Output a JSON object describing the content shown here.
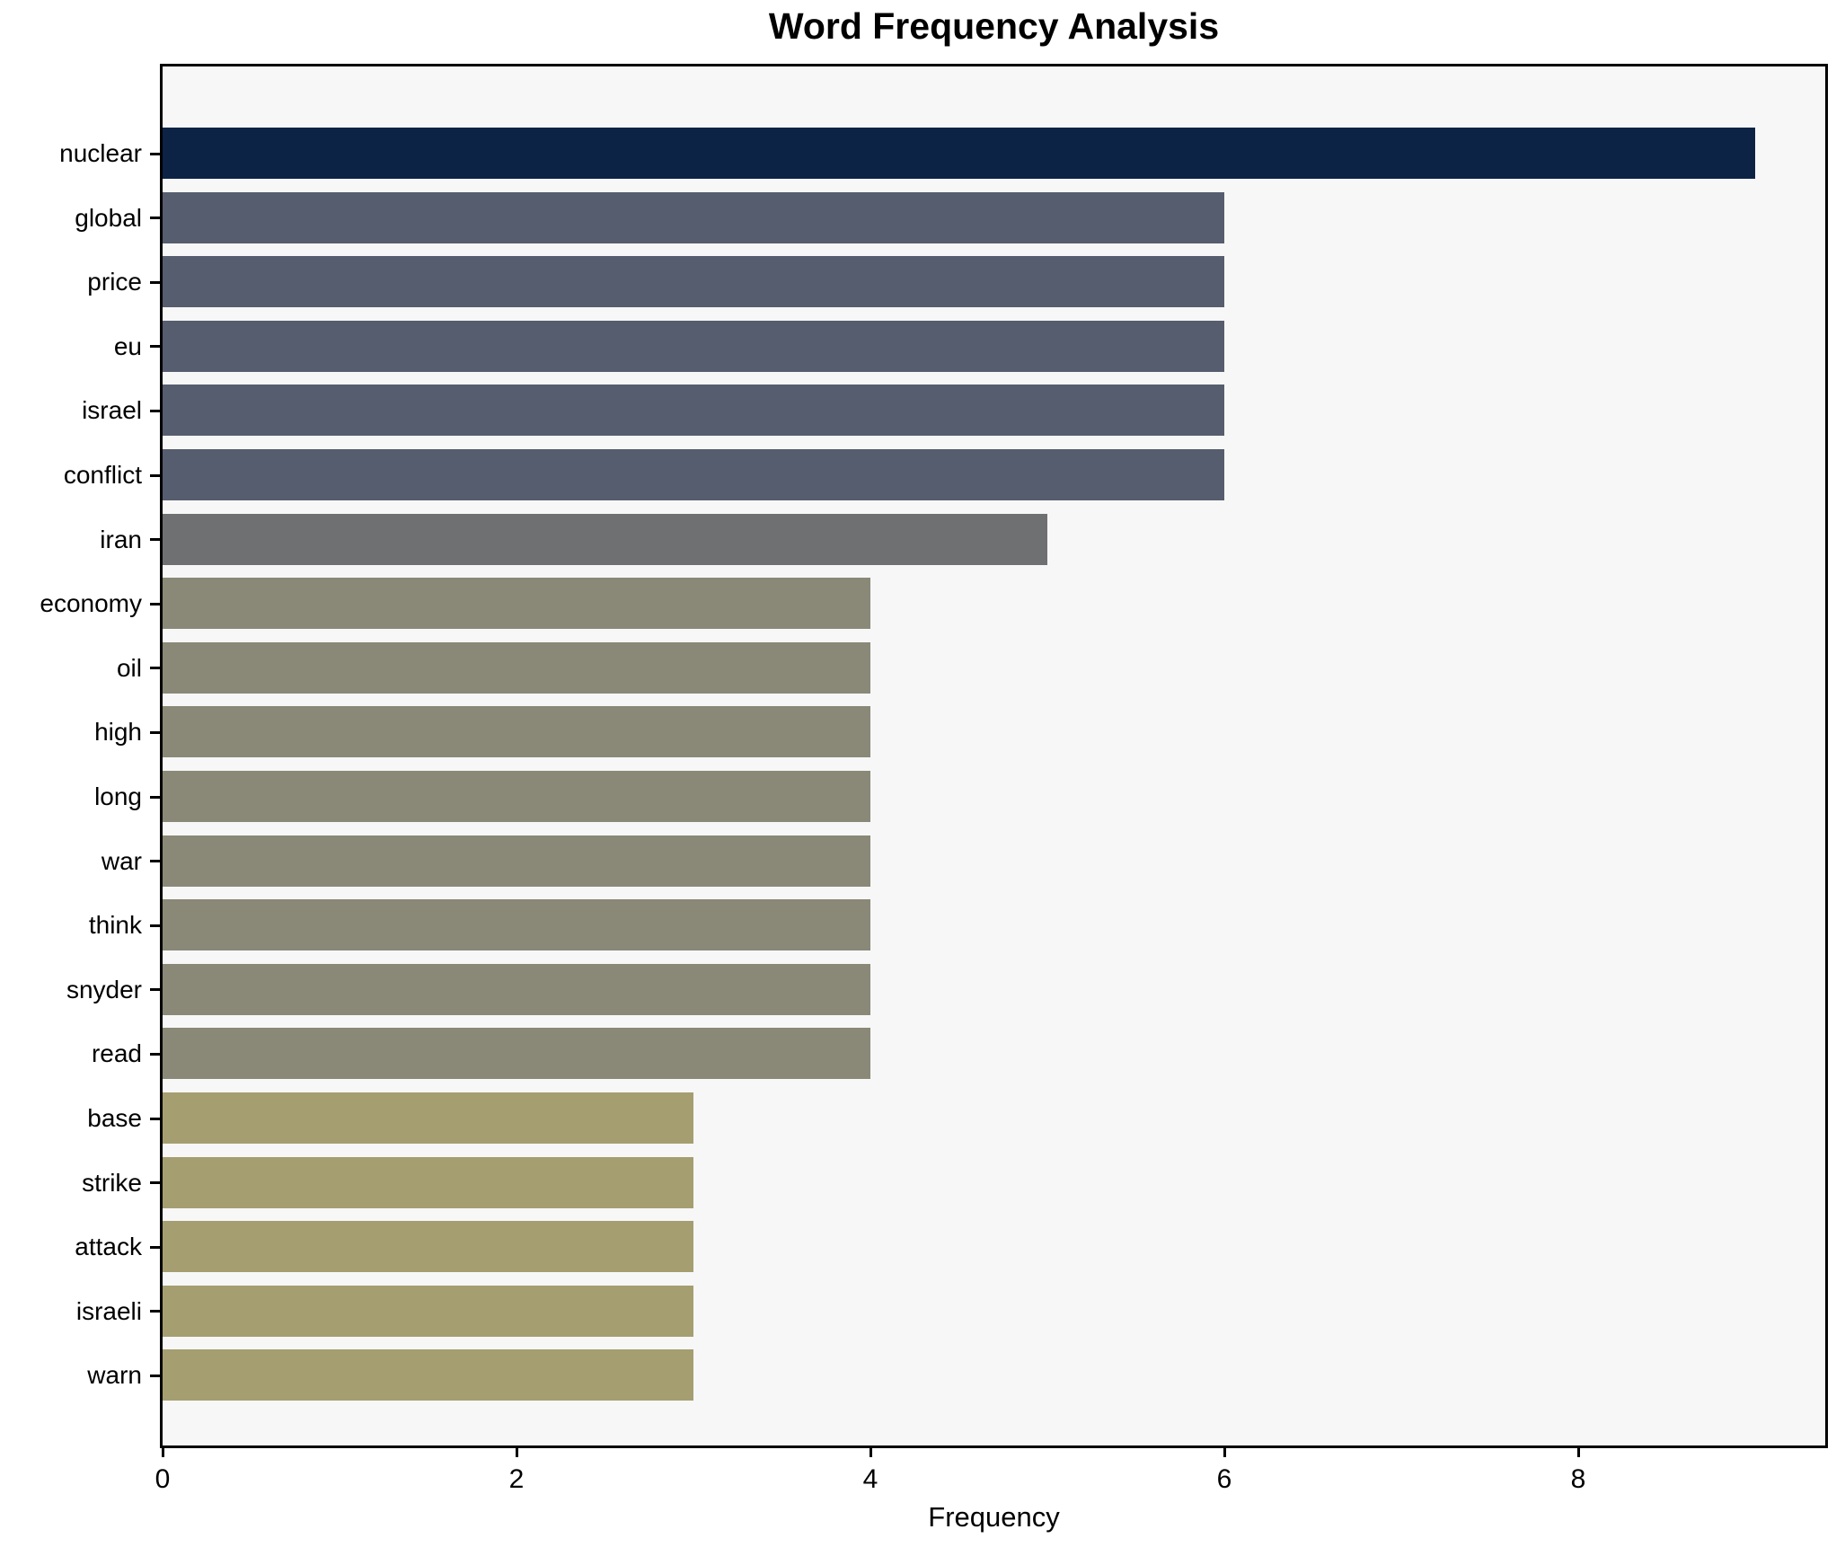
{
  "title": "Word Frequency Analysis",
  "x_axis": {
    "label": "Frequency",
    "ticks": [
      0,
      2,
      4,
      6,
      8
    ]
  },
  "chart_data": {
    "type": "bar",
    "orientation": "horizontal",
    "title": "Word Frequency Analysis",
    "xlabel": "Frequency",
    "ylabel": "",
    "xlim": [
      0,
      9.4
    ],
    "x_ticks": [
      0,
      2,
      4,
      6,
      8
    ],
    "grid": false,
    "legend": false,
    "plot_background": "#f7f7f7",
    "figure_background": "#ffffff",
    "spine_color": "#000000",
    "categories": [
      "nuclear",
      "global",
      "price",
      "eu",
      "israel",
      "conflict",
      "iran",
      "economy",
      "oil",
      "high",
      "long",
      "war",
      "think",
      "snyder",
      "read",
      "base",
      "strike",
      "attack",
      "israeli",
      "warn"
    ],
    "values": [
      9,
      6,
      6,
      6,
      6,
      6,
      5,
      4,
      4,
      4,
      4,
      4,
      4,
      4,
      4,
      3,
      3,
      3,
      3,
      3
    ],
    "colors": [
      "#0d2345",
      "#565d6e",
      "#565d6e",
      "#565d6e",
      "#565d6e",
      "#565d6e",
      "#6f7072",
      "#8a8877",
      "#8a8877",
      "#8a8877",
      "#8a8877",
      "#8a8877",
      "#8a8877",
      "#8a8877",
      "#8a8877",
      "#a59e71",
      "#a59e71",
      "#a59e71",
      "#a59e71",
      "#a59e71"
    ]
  }
}
